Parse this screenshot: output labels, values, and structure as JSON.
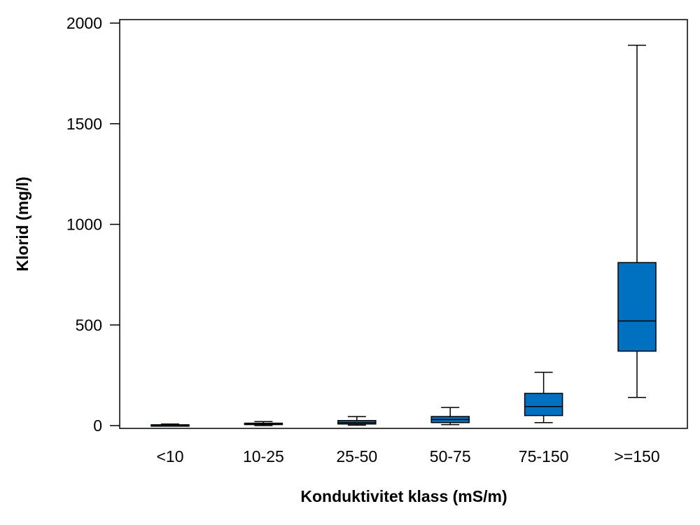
{
  "chart_data": {
    "type": "boxplot",
    "title": "",
    "xlabel": "Konduktivitet klass (mS/m)",
    "ylabel": "Klorid (mg/l)",
    "ylim": [
      -20,
      2020
    ],
    "yticks": [
      0,
      500,
      1000,
      1500,
      2000
    ],
    "ytick_labels": [
      "0",
      "500",
      "1000",
      "1500",
      "2000"
    ],
    "categories": [
      "<10",
      "10-25",
      "25-50",
      "50-75",
      "75-150",
      ">=150"
    ],
    "boxes": [
      {
        "category": "<10",
        "whisker_low": 0,
        "q1": 1,
        "median": 3,
        "q3": 4,
        "whisker_high": 8
      },
      {
        "category": "10-25",
        "whisker_low": 0,
        "q1": 5,
        "median": 8,
        "q3": 12,
        "whisker_high": 20
      },
      {
        "category": "25-50",
        "whisker_low": 2,
        "q1": 8,
        "median": 15,
        "q3": 25,
        "whisker_high": 45
      },
      {
        "category": "50-75",
        "whisker_low": 5,
        "q1": 15,
        "median": 30,
        "q3": 45,
        "whisker_high": 90
      },
      {
        "category": "75-150",
        "whisker_low": 15,
        "q1": 50,
        "median": 95,
        "q3": 160,
        "whisker_high": 265
      },
      {
        "category": ">=150",
        "whisker_low": 140,
        "q1": 370,
        "median": 520,
        "q3": 810,
        "whisker_high": 1890
      }
    ],
    "box_color": "#0070C0",
    "line_color": "#000000",
    "grid": false,
    "legend": "none"
  }
}
